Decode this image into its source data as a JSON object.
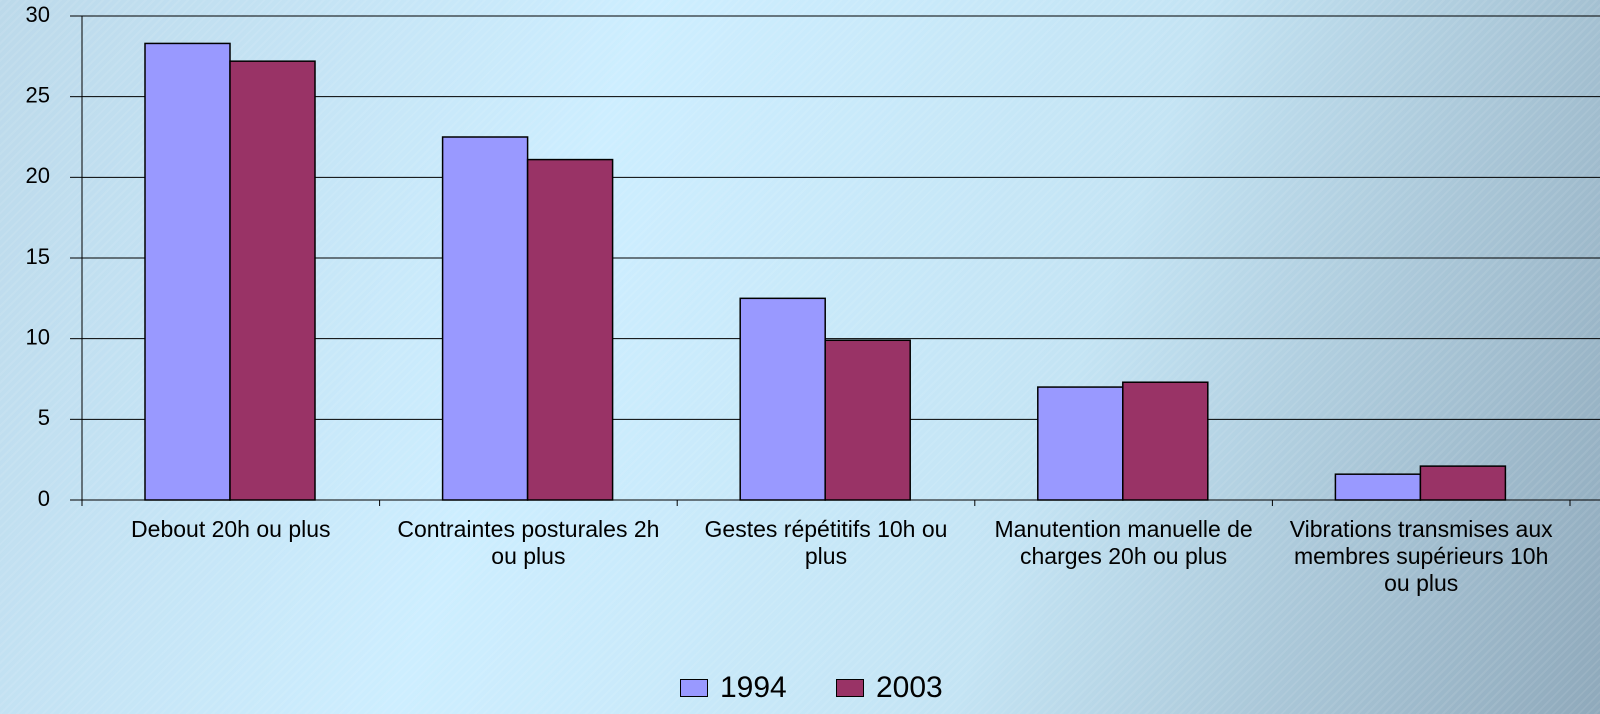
{
  "chart_data": {
    "type": "bar",
    "categories": [
      "Debout 20h ou plus",
      "Contraintes posturales 2h ou plus",
      "Gestes répétitifs 10h ou plus",
      "Manutention manuelle de charges 20h ou plus",
      "Vibrations transmises aux membres supérieurs 10h ou plus"
    ],
    "series": [
      {
        "name": "1994",
        "color": "#9999ff",
        "values": [
          28.3,
          22.5,
          12.5,
          7.0,
          1.6
        ]
      },
      {
        "name": "2003",
        "color": "#993366",
        "values": [
          27.2,
          21.1,
          9.9,
          7.3,
          2.1
        ]
      }
    ],
    "ylim": [
      0,
      30
    ],
    "yticks": [
      0,
      5,
      10,
      15,
      20,
      25,
      30
    ],
    "grid": true,
    "legend": "bottom"
  }
}
